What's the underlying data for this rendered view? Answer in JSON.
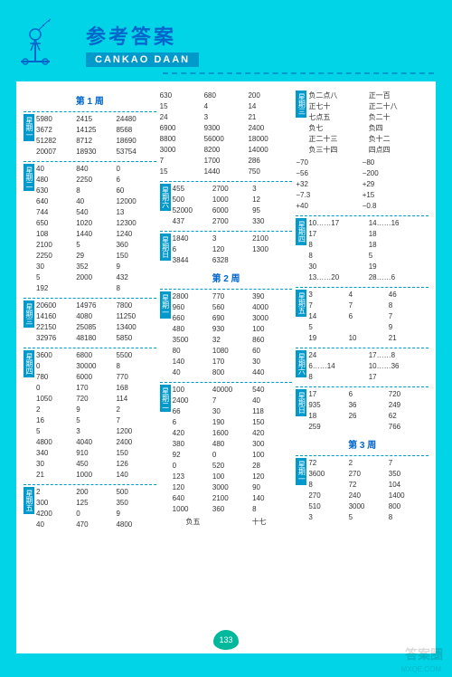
{
  "header": {
    "title_cn": "参考答案",
    "subtitle": "CANKAO DAAN"
  },
  "page_number": "133",
  "watermark": "答案圈",
  "watermark_url": "MXQE.COM",
  "col1": {
    "week": "第 1 周",
    "d1": [
      [
        "5980",
        "2415",
        "24480"
      ],
      [
        "3672",
        "14125",
        "8568"
      ],
      [
        "51282",
        "8712",
        "18690"
      ],
      [
        "20007",
        "18930",
        "53754"
      ]
    ],
    "d2": [
      [
        "40",
        "840",
        "0"
      ],
      [
        "480",
        "2250",
        "6"
      ],
      [
        "630",
        "8",
        "60"
      ],
      [
        "640",
        "40",
        "12000"
      ],
      [
        "744",
        "540",
        "13"
      ],
      [
        "650",
        "1020",
        "12300"
      ],
      [
        "108",
        "1440",
        "1240"
      ],
      [
        "2100",
        "5",
        "360"
      ],
      [
        "2250",
        "29",
        "150"
      ],
      [
        "30",
        "352",
        "9"
      ],
      [
        "5",
        "2000",
        "432"
      ],
      [
        "192",
        "",
        "8"
      ]
    ],
    "d3": [
      [
        "20600",
        "14976",
        "7800"
      ],
      [
        "14160",
        "4080",
        "11250"
      ],
      [
        "22150",
        "25085",
        "13400"
      ],
      [
        "32976",
        "48180",
        "5850"
      ]
    ],
    "d4": [
      [
        "3600",
        "6800",
        "5500"
      ],
      [
        "0",
        "30000",
        "8"
      ],
      [
        "780",
        "6000",
        "770"
      ],
      [
        "0",
        "170",
        "168"
      ],
      [
        "1050",
        "720",
        "114"
      ],
      [
        "2",
        "9",
        "2"
      ],
      [
        "16",
        "5",
        "7"
      ],
      [
        "5",
        "3",
        "1200"
      ],
      [
        "4800",
        "4040",
        "2400"
      ],
      [
        "340",
        "910",
        "150"
      ],
      [
        "30",
        "450",
        "126"
      ],
      [
        "21",
        "1000",
        "140"
      ]
    ],
    "d5": [
      [
        "2",
        "200",
        "500"
      ],
      [
        "300",
        "125",
        "350"
      ],
      [
        "4200",
        "0",
        "9"
      ],
      [
        "40",
        "470",
        "4800"
      ]
    ]
  },
  "col2": {
    "top": [
      [
        "630",
        "680",
        "200"
      ],
      [
        "15",
        "4",
        "14"
      ],
      [
        "24",
        "3",
        "21"
      ],
      [
        "6900",
        "9300",
        "2400"
      ],
      [
        "8800",
        "56000",
        "18000"
      ],
      [
        "3000",
        "8200",
        "14000"
      ],
      [
        "7",
        "1700",
        "286"
      ],
      [
        "15",
        "1440",
        "750"
      ]
    ],
    "d6": [
      [
        "455",
        "2700",
        "3"
      ],
      [
        "500",
        "1000",
        "12"
      ],
      [
        "52000",
        "6000",
        "95"
      ],
      [
        "437",
        "2700",
        "330"
      ]
    ],
    "d7": [
      [
        "1840",
        "3",
        "2100"
      ],
      [
        "6",
        "120",
        "1300"
      ],
      [
        "3844",
        "6328",
        ""
      ]
    ],
    "week": "第 2 周",
    "w2d1": [
      [
        "2800",
        "770",
        "390"
      ],
      [
        "960",
        "560",
        "4000"
      ],
      [
        "660",
        "690",
        "3000"
      ],
      [
        "480",
        "930",
        "100"
      ],
      [
        "3500",
        "32",
        "860"
      ],
      [
        "80",
        "1080",
        "60"
      ],
      [
        "140",
        "170",
        "30"
      ],
      [
        "40",
        "800",
        "440"
      ]
    ],
    "w2d2": [
      [
        "100",
        "40000",
        "540"
      ],
      [
        "2400",
        "7",
        "40"
      ],
      [
        "66",
        "30",
        "118"
      ],
      [
        "6",
        "190",
        "150"
      ],
      [
        "420",
        "1600",
        "420"
      ],
      [
        "380",
        "480",
        "300"
      ],
      [
        "92",
        "0",
        "100"
      ],
      [
        "0",
        "520",
        "28"
      ],
      [
        "123",
        "100",
        "120"
      ],
      [
        "120",
        "3000",
        "90"
      ],
      [
        "640",
        "2100",
        "140"
      ],
      [
        "1000",
        "360",
        "8"
      ]
    ],
    "hanzi": [
      "负五",
      "十七"
    ]
  },
  "col3": {
    "hanzi1": [
      [
        "负二点八",
        "正一百"
      ],
      [
        "正七十",
        "正二十八"
      ],
      [
        "七点五",
        "负二十"
      ],
      [
        "负七",
        "负四"
      ],
      [
        "正二十三",
        "负十二"
      ],
      [
        "负三十四",
        "四点四"
      ]
    ],
    "d3_nums": [
      [
        "−70",
        "−80"
      ],
      [
        "−56",
        "−200"
      ],
      [
        "+32",
        "+29"
      ],
      [
        "−7.3",
        "+15"
      ],
      [
        "+40",
        "−0.8"
      ]
    ],
    "d4": [
      [
        "10……17",
        "14……16"
      ],
      [
        "17",
        "18"
      ],
      [
        "8",
        "18"
      ],
      [
        "8",
        "5"
      ],
      [
        "30",
        "19"
      ],
      [
        "13……20",
        "28……6"
      ]
    ],
    "d5": [
      [
        "3",
        "4",
        "46"
      ],
      [
        "7",
        "7",
        "8"
      ],
      [
        "14",
        "6",
        "7"
      ],
      [
        "5",
        "",
        "9"
      ],
      [
        "19",
        "10",
        "21"
      ]
    ],
    "d6": [
      [
        "24",
        "17……8"
      ],
      [
        "6……14",
        "10……36"
      ],
      [
        "8",
        "17"
      ]
    ],
    "d7": [
      [
        "17",
        "6",
        "720"
      ],
      [
        "935",
        "36",
        "249"
      ],
      [
        "18",
        "26",
        "62"
      ],
      [
        "259",
        "",
        "766"
      ]
    ],
    "week": "第 3 周",
    "w3d1": [
      [
        "72",
        "2",
        "7"
      ],
      [
        "3600",
        "270",
        "350"
      ],
      [
        "8",
        "72",
        "104"
      ],
      [
        "270",
        "240",
        "1400"
      ],
      [
        "510",
        "3000",
        "800"
      ],
      [
        "3",
        "5",
        "8"
      ]
    ]
  }
}
